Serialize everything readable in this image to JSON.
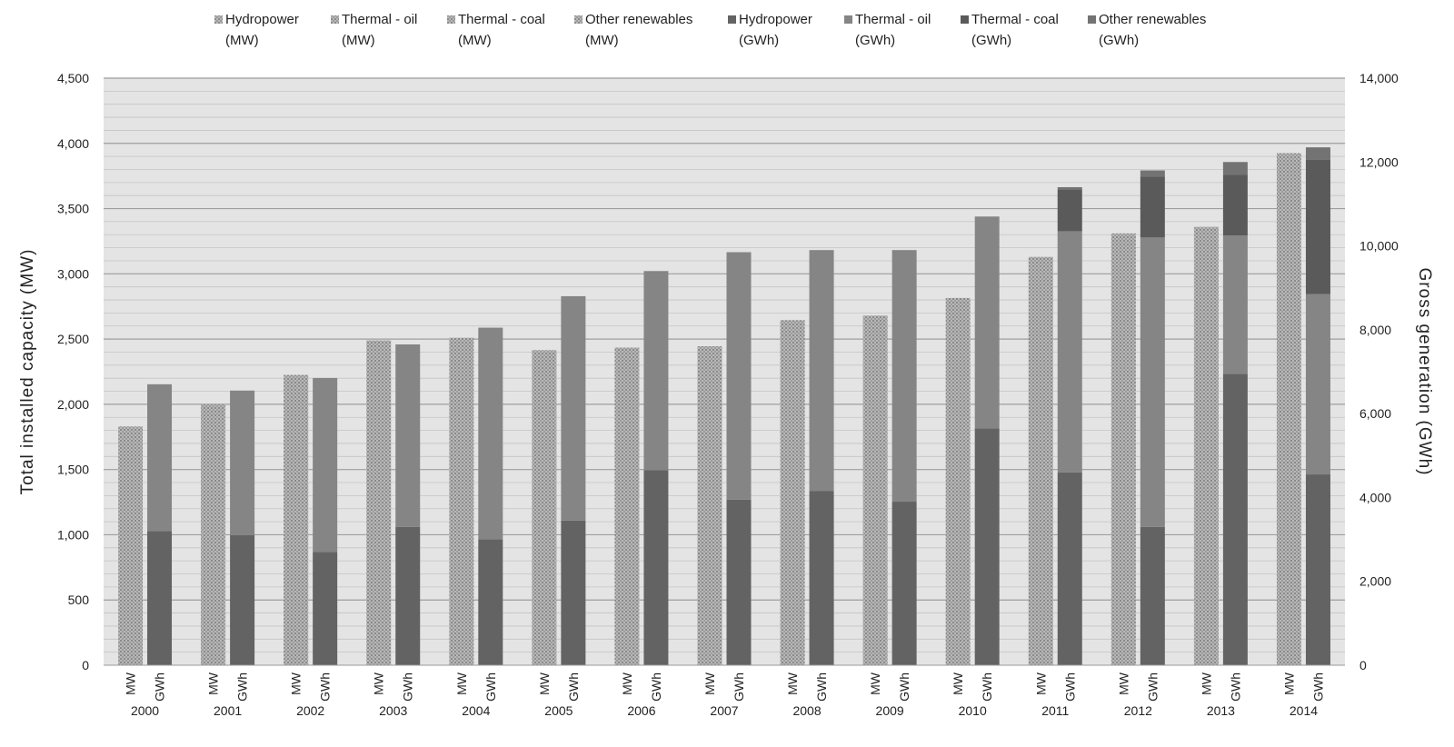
{
  "chart_data": {
    "type": "bar",
    "subtype": "grouped-stacked",
    "title": "",
    "categories": [
      "2000",
      "2001",
      "2002",
      "2003",
      "2004",
      "2005",
      "2006",
      "2007",
      "2008",
      "2009",
      "2010",
      "2011",
      "2012",
      "2013",
      "2014"
    ],
    "bar_labels": [
      "MW",
      "GWh"
    ],
    "y_left": {
      "label": "Total installed capacity (MW)",
      "lim": [
        0,
        4500
      ],
      "ticks": [
        0,
        500,
        1000,
        1500,
        2000,
        2500,
        3000,
        3500,
        4000,
        4500
      ],
      "tick_labels": [
        "0",
        "500",
        "1,000",
        "1,500",
        "2,000",
        "2,500",
        "3,000",
        "3,500",
        "4,000",
        "4,500"
      ]
    },
    "y_right": {
      "label": "Gross generation (GWh)",
      "lim": [
        0,
        14000
      ],
      "ticks": [
        0,
        2000,
        4000,
        6000,
        8000,
        10000,
        12000,
        14000
      ],
      "tick_labels": [
        "0",
        "2,000",
        "4,000",
        "6,000",
        "8,000",
        "10,000",
        "12,000",
        "14,000"
      ]
    },
    "legend": [
      {
        "line1": "Hydropower",
        "line2": "(MW)",
        "color": "#9a9a9a",
        "pattern": "dots"
      },
      {
        "line1": "Thermal - oil",
        "line2": "(MW)",
        "color": "#a8a8a8",
        "pattern": "dots"
      },
      {
        "line1": "Thermal - coal",
        "line2": "(MW)",
        "color": "#b4b4b4",
        "pattern": "dots"
      },
      {
        "line1": "Other renewables",
        "line2": "(MW)",
        "color": "#c2c2c2",
        "pattern": "dots"
      },
      {
        "line1": "Hydropower",
        "line2": "(GWh)",
        "color": "#636363",
        "pattern": "solid"
      },
      {
        "line1": "Thermal - oil",
        "line2": "(GWh)",
        "color": "#858585",
        "pattern": "solid"
      },
      {
        "line1": "Thermal - coal",
        "line2": "(GWh)",
        "color": "#5a5a5a",
        "pattern": "solid"
      },
      {
        "line1": "Other renewables",
        "line2": "(GWh)",
        "color": "#737373",
        "pattern": "solid"
      }
    ],
    "series_mw": [
      {
        "name": "Hydropower (MW)",
        "values": [
          1830,
          2000,
          2225,
          2490,
          2510,
          2415,
          2435,
          2445,
          2645,
          2680,
          2815,
          3130,
          3310,
          3360,
          3925
        ]
      },
      {
        "name": "Thermal - oil (MW)",
        "values": [
          0,
          0,
          0,
          0,
          0,
          0,
          0,
          0,
          0,
          0,
          0,
          0,
          0,
          0,
          0
        ]
      },
      {
        "name": "Thermal - coal (MW)",
        "values": [
          0,
          0,
          0,
          0,
          0,
          0,
          0,
          0,
          0,
          0,
          0,
          0,
          0,
          0,
          0
        ]
      },
      {
        "name": "Other renewables (MW)",
        "values": [
          0,
          0,
          0,
          0,
          0,
          0,
          0,
          0,
          0,
          0,
          0,
          0,
          0,
          0,
          0
        ]
      }
    ],
    "series_gwh": [
      {
        "name": "Hydropower (GWh)",
        "values": [
          3200,
          3100,
          2700,
          3300,
          3000,
          3450,
          4650,
          3950,
          4150,
          3900,
          5650,
          4600,
          3300,
          6950,
          4550
        ]
      },
      {
        "name": "Thermal - oil (GWh)",
        "values": [
          3500,
          3450,
          4150,
          4350,
          5050,
          5350,
          4750,
          5900,
          5750,
          6000,
          5050,
          5750,
          6900,
          3300,
          4300
        ]
      },
      {
        "name": "Thermal - coal (GWh)",
        "values": [
          0,
          0,
          0,
          0,
          0,
          0,
          0,
          0,
          0,
          0,
          0,
          1000,
          1450,
          1450,
          3200
        ]
      },
      {
        "name": "Other renewables (GWh)",
        "values": [
          0,
          0,
          0,
          0,
          0,
          0,
          0,
          0,
          0,
          0,
          0,
          50,
          150,
          300,
          300
        ]
      }
    ]
  }
}
